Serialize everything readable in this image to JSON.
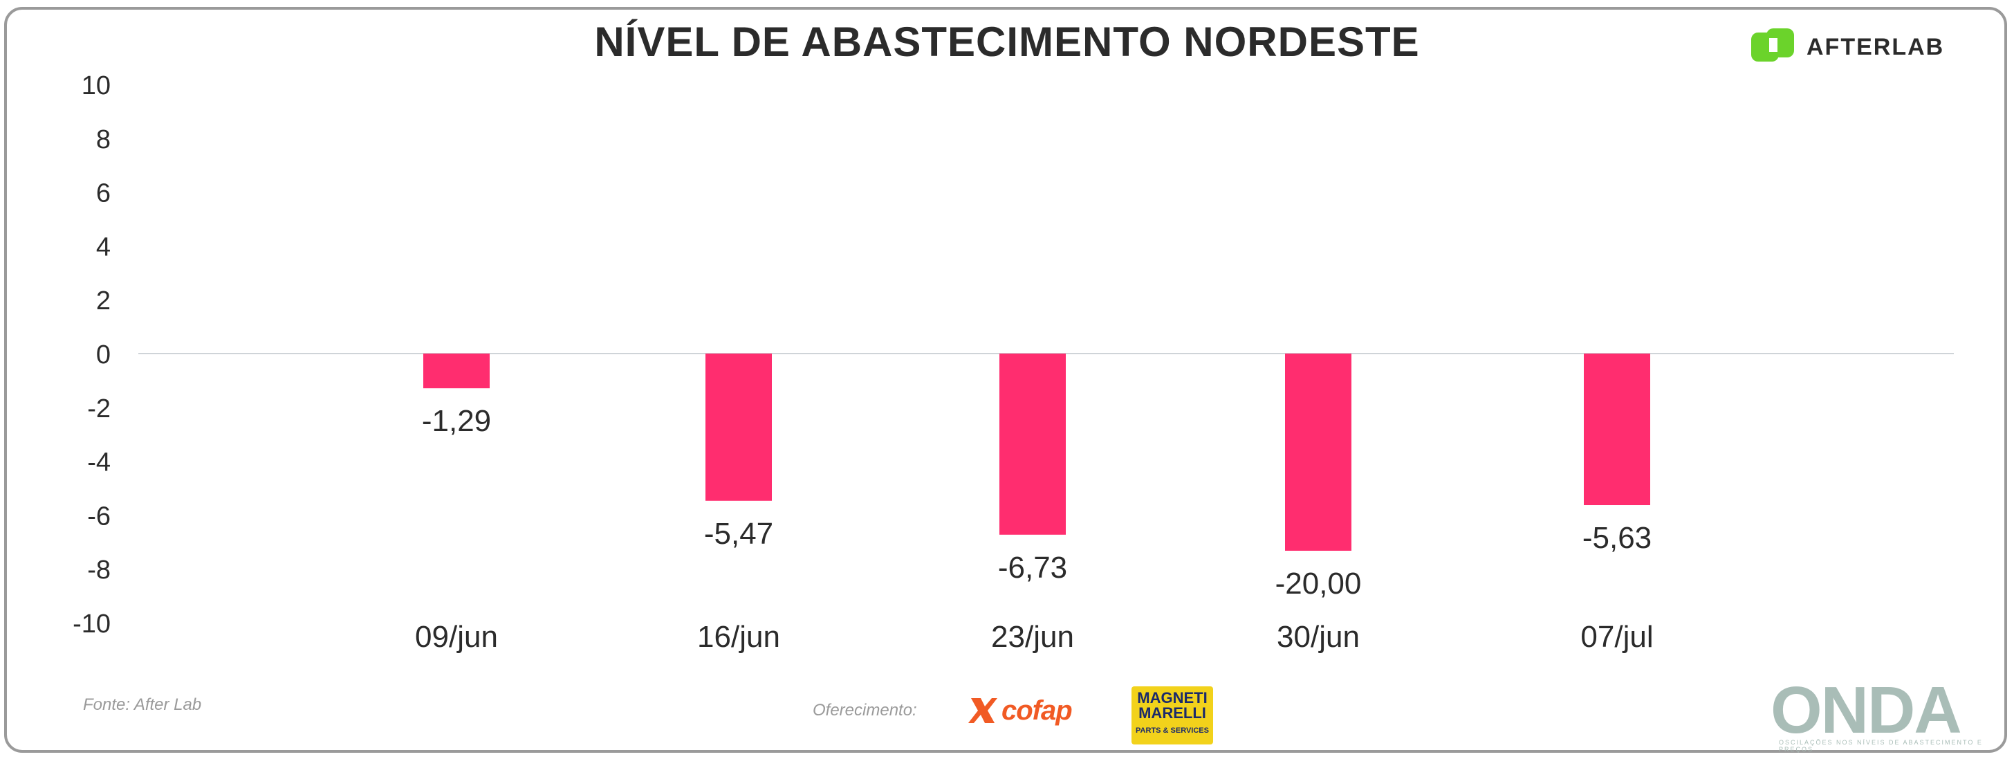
{
  "header": {
    "title": "NÍVEL DE ABASTECIMENTO NORDESTE",
    "brand_logo": "AFTERLAB",
    "brand_color": "#6bd32b"
  },
  "chart_data": {
    "type": "bar",
    "categories": [
      "09/jun",
      "16/jun",
      "23/jun",
      "30/jun",
      "07/jul"
    ],
    "values": [
      -1.29,
      -5.47,
      -6.73,
      -20.0,
      -5.63
    ],
    "value_labels": [
      "-1,29",
      "-5,47",
      "-6,73",
      "-20,00",
      "-5,63"
    ],
    "ylim": [
      -10,
      10
    ],
    "yticks": [
      10,
      8,
      6,
      4,
      2,
      0,
      -2,
      -4,
      -6,
      -8,
      -10
    ],
    "title": "NÍVEL DE ABASTECIMENTO NORDESTE",
    "xlabel": "",
    "ylabel": "",
    "grid": false,
    "bar_color": "#ff2d6f",
    "zero_line_color": "#cfd4d8"
  },
  "footer": {
    "source": "Fonte: After Lab",
    "sponsor_label": "Oferecimento:",
    "sponsor_1": "cofap",
    "sponsor_2_main": "MAGNETI MARELLI",
    "sponsor_2_sub": "PARTS & SERVICES",
    "onda": "ONDA",
    "onda_tagline": "OSCILAÇÕES NOS NÍVEIS DE ABASTECIMENTO E PREÇOS"
  }
}
